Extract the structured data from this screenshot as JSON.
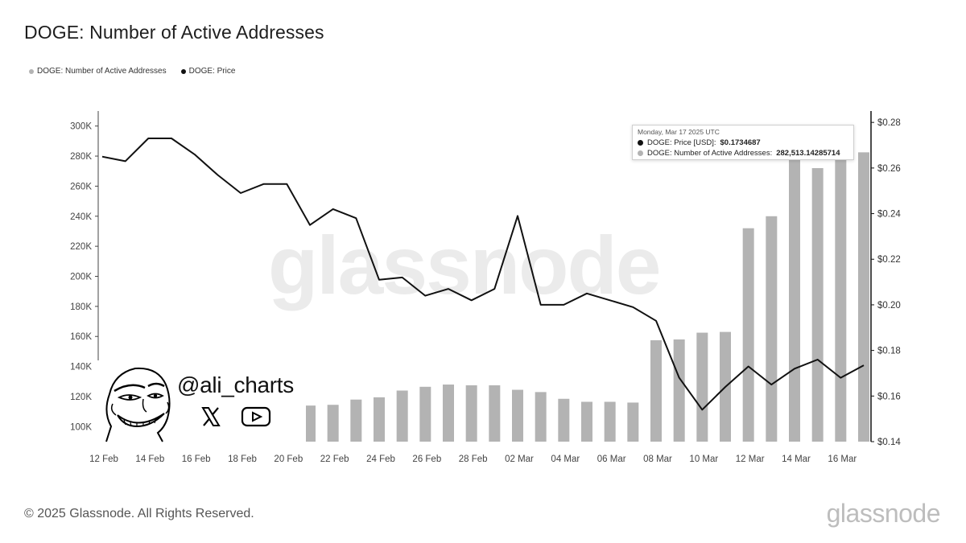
{
  "title": "DOGE: Number of Active Addresses",
  "legend": [
    {
      "label": "DOGE: Number of Active Addresses",
      "color": "#b3b3b3"
    },
    {
      "label": "DOGE: Price",
      "color": "#111111"
    }
  ],
  "chart_data": {
    "type": "bar",
    "title": "DOGE: Number of Active Addresses",
    "x_labels": [
      "12 Feb",
      "14 Feb",
      "16 Feb",
      "18 Feb",
      "20 Feb",
      "22 Feb",
      "24 Feb",
      "26 Feb",
      "28 Feb",
      "02 Mar",
      "04 Mar",
      "06 Mar",
      "08 Mar",
      "10 Mar",
      "12 Mar",
      "14 Mar",
      "16 Mar"
    ],
    "dates": [
      "2025-02-12",
      "2025-02-13",
      "2025-02-14",
      "2025-02-15",
      "2025-02-16",
      "2025-02-17",
      "2025-02-18",
      "2025-02-19",
      "2025-02-20",
      "2025-02-21",
      "2025-02-22",
      "2025-02-23",
      "2025-02-24",
      "2025-02-25",
      "2025-02-26",
      "2025-02-27",
      "2025-02-28",
      "2025-03-01",
      "2025-03-02",
      "2025-03-03",
      "2025-03-04",
      "2025-03-05",
      "2025-03-06",
      "2025-03-07",
      "2025-03-08",
      "2025-03-09",
      "2025-03-10",
      "2025-03-11",
      "2025-03-12",
      "2025-03-13",
      "2025-03-14",
      "2025-03-15",
      "2025-03-16",
      "2025-03-17"
    ],
    "y_left": {
      "ticks": [
        "100K",
        "120K",
        "140K",
        "160K",
        "180K",
        "200K",
        "220K",
        "240K",
        "260K",
        "280K",
        "300K"
      ],
      "min": 90000,
      "max": 310000
    },
    "y_right": {
      "ticks": [
        "$0.14",
        "$0.16",
        "$0.18",
        "$0.20",
        "$0.22",
        "$0.24",
        "$0.26",
        "$0.28"
      ],
      "min": 0.14,
      "max": 0.285
    },
    "series": [
      {
        "name": "DOGE: Number of Active Addresses",
        "type": "bar",
        "axis": "left",
        "color": "#b3b3b3",
        "values": [
          null,
          null,
          null,
          null,
          null,
          null,
          null,
          null,
          null,
          114000,
          114500,
          118000,
          119500,
          124000,
          126500,
          128000,
          127500,
          127500,
          124500,
          123000,
          118500,
          116500,
          116500,
          116000,
          157500,
          158000,
          162500,
          163000,
          232000,
          240000,
          280000,
          272000,
          284000,
          282513.14285714
        ]
      },
      {
        "name": "DOGE: Price",
        "type": "line",
        "axis": "right",
        "color": "#111111",
        "values": [
          0.265,
          0.263,
          0.273,
          0.273,
          0.266,
          0.257,
          0.249,
          0.253,
          0.253,
          0.235,
          0.242,
          0.238,
          0.211,
          0.212,
          0.204,
          0.207,
          0.202,
          0.207,
          0.239,
          0.2,
          0.2,
          0.205,
          0.202,
          0.199,
          0.193,
          0.168,
          0.154,
          0.164,
          0.173,
          0.165,
          0.172,
          0.176,
          0.168,
          0.1734687
        ]
      }
    ]
  },
  "tooltip": {
    "date": "Monday, Mar 17 2025 UTC",
    "price_label": "DOGE: Price [USD]:",
    "price_value": "$0.1734687",
    "addr_label": "DOGE: Number of Active Addresses:",
    "addr_value": "282,513.14285714"
  },
  "watermark": "glassnode",
  "overlay": {
    "handle": "@ali_charts",
    "icons": [
      "x-logo-icon",
      "youtube-icon"
    ]
  },
  "footer": {
    "copyright": "© 2025 Glassnode. All Rights Reserved.",
    "logo": "glassnode"
  }
}
